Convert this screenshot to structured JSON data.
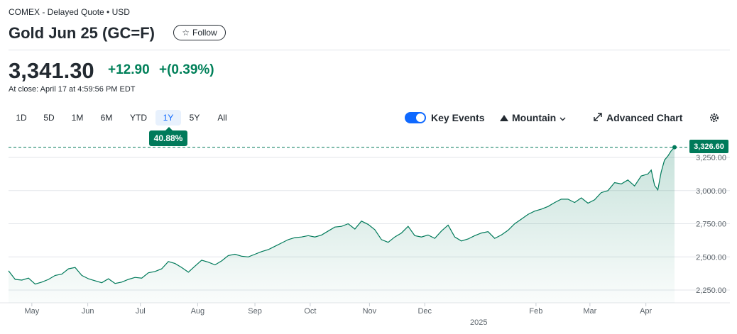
{
  "header": {
    "exchange": "COMEX - Delayed Quote • USD",
    "title": "Gold Jun 25 (GC=F)",
    "follow_label": "Follow"
  },
  "quote": {
    "price": "3,341.30",
    "change": "+12.90",
    "change_pct": "+(0.39%)",
    "close_time": "At close: April 17 at 4:59:56 PM EDT",
    "accent_color": "#008059"
  },
  "ranges": [
    "1D",
    "5D",
    "1M",
    "6M",
    "YTD",
    "1Y",
    "5Y",
    "All"
  ],
  "active_range": "1Y",
  "range_return": "40.88%",
  "toolbar": {
    "key_events_label": "Key Events",
    "key_events_on": true,
    "chart_type_label": "Mountain",
    "advanced_label": "Advanced Chart",
    "icons": [
      "toggle-switch",
      "mountain-icon",
      "chevron-down-icon",
      "expand-arrows-icon",
      "gear-icon"
    ]
  },
  "chart_data": {
    "type": "area",
    "line_color": "#007a5a",
    "last_value_label": "3,326.60",
    "ylim": [
      2180,
      3400
    ],
    "y_ticks": [
      2250,
      2500,
      2750,
      3000,
      3250
    ],
    "y_tick_labels": [
      "2,250.00",
      "2,500.00",
      "2,750.00",
      "3,000.00",
      "3,250.00"
    ],
    "x_ticks": [
      {
        "label": "May",
        "x": 0.035
      },
      {
        "label": "Jun",
        "x": 0.119
      },
      {
        "label": "Jul",
        "x": 0.198
      },
      {
        "label": "Aug",
        "x": 0.284
      },
      {
        "label": "Sep",
        "x": 0.37
      },
      {
        "label": "Oct",
        "x": 0.453
      },
      {
        "label": "Nov",
        "x": 0.542
      },
      {
        "label": "Dec",
        "x": 0.625
      },
      {
        "label": "Feb",
        "x": 0.792
      },
      {
        "label": "Mar",
        "x": 0.873
      },
      {
        "label": "Apr",
        "x": 0.957
      }
    ],
    "year_label": "2025",
    "year_x": 0.706,
    "x": [
      0.0,
      0.01,
      0.02,
      0.03,
      0.04,
      0.05,
      0.06,
      0.07,
      0.08,
      0.09,
      0.1,
      0.11,
      0.12,
      0.13,
      0.14,
      0.15,
      0.16,
      0.17,
      0.18,
      0.19,
      0.2,
      0.21,
      0.22,
      0.23,
      0.24,
      0.25,
      0.26,
      0.27,
      0.28,
      0.29,
      0.3,
      0.31,
      0.32,
      0.33,
      0.34,
      0.35,
      0.36,
      0.37,
      0.38,
      0.39,
      0.4,
      0.41,
      0.42,
      0.43,
      0.44,
      0.45,
      0.46,
      0.47,
      0.48,
      0.49,
      0.5,
      0.51,
      0.52,
      0.53,
      0.54,
      0.55,
      0.56,
      0.57,
      0.58,
      0.59,
      0.6,
      0.61,
      0.62,
      0.63,
      0.64,
      0.65,
      0.66,
      0.67,
      0.68,
      0.69,
      0.7,
      0.71,
      0.72,
      0.73,
      0.74,
      0.75,
      0.76,
      0.77,
      0.78,
      0.79,
      0.8,
      0.81,
      0.82,
      0.83,
      0.84,
      0.85,
      0.86,
      0.87,
      0.88,
      0.89,
      0.9,
      0.91,
      0.92,
      0.93,
      0.94,
      0.95,
      0.96,
      0.965,
      0.97,
      0.975,
      0.98,
      0.985,
      0.99,
      0.995,
      1.0
    ],
    "values": [
      2395,
      2330,
      2325,
      2340,
      2295,
      2310,
      2330,
      2360,
      2370,
      2410,
      2420,
      2360,
      2335,
      2320,
      2305,
      2335,
      2300,
      2310,
      2330,
      2345,
      2340,
      2380,
      2390,
      2410,
      2465,
      2450,
      2420,
      2385,
      2430,
      2475,
      2460,
      2440,
      2470,
      2510,
      2520,
      2505,
      2500,
      2520,
      2540,
      2555,
      2580,
      2605,
      2630,
      2645,
      2650,
      2660,
      2650,
      2665,
      2695,
      2725,
      2730,
      2750,
      2710,
      2770,
      2745,
      2705,
      2630,
      2610,
      2650,
      2680,
      2730,
      2660,
      2650,
      2665,
      2640,
      2695,
      2740,
      2650,
      2620,
      2635,
      2660,
      2680,
      2690,
      2640,
      2665,
      2700,
      2750,
      2785,
      2820,
      2845,
      2860,
      2880,
      2910,
      2935,
      2935,
      2910,
      2945,
      2905,
      2930,
      2985,
      3000,
      3060,
      3050,
      3080,
      3035,
      3110,
      3125,
      3155,
      3040,
      3005,
      3140,
      3230,
      3260,
      3300,
      3326.6
    ]
  }
}
